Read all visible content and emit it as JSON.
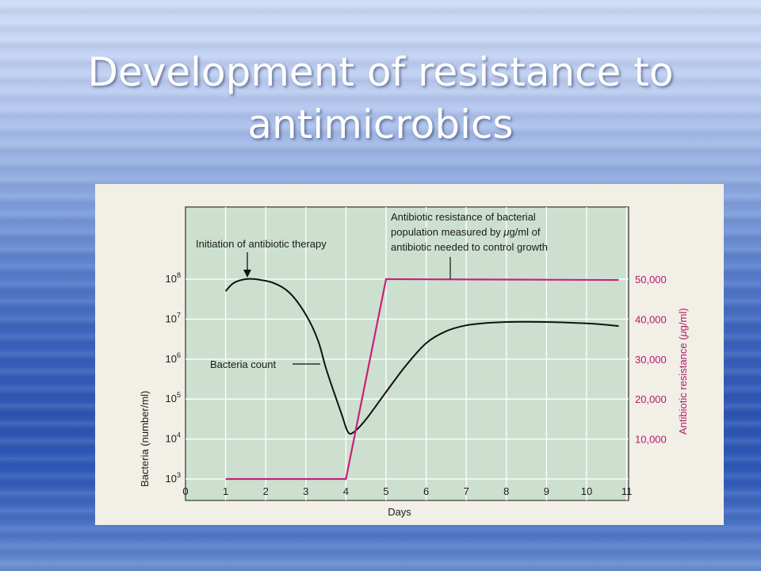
{
  "slide": {
    "title_line1": "Development of resistance to",
    "title_line2": "antimicrobics"
  },
  "colors": {
    "bacteria_curve": "#111111",
    "resistance_curve": "#c8207a",
    "plot_background": "#cde0cf",
    "grid": "#ffffff",
    "right_axis": "#b3186b"
  },
  "chart_data": {
    "type": "line",
    "xlabel": "Days",
    "xlim": [
      0,
      11
    ],
    "x_ticks": [
      "0",
      "1",
      "2",
      "3",
      "4",
      "5",
      "6",
      "7",
      "8",
      "9",
      "10",
      "11"
    ],
    "y_left": {
      "label": "Bacteria (number/ml)",
      "scale": "log",
      "lim": [
        1000,
        100000000
      ],
      "ticks": [
        {
          "value": 1000,
          "base": "10",
          "exp": "3"
        },
        {
          "value": 10000,
          "base": "10",
          "exp": "4"
        },
        {
          "value": 100000,
          "base": "10",
          "exp": "5"
        },
        {
          "value": 1000000,
          "base": "10",
          "exp": "6"
        },
        {
          "value": 10000000,
          "base": "10",
          "exp": "7"
        },
        {
          "value": 100000000,
          "base": "10",
          "exp": "8"
        }
      ]
    },
    "y_right": {
      "label_pre": "Antibiotic resistance (",
      "label_mu": "μ",
      "label_post": "g/ml)",
      "lim": [
        0,
        50000
      ],
      "ticks": [
        "10,000",
        "20,000",
        "30,000",
        "40,000",
        "50,000"
      ],
      "tick_values": [
        10000,
        20000,
        30000,
        40000,
        50000
      ]
    },
    "series": [
      {
        "name": "Bacteria count",
        "axis": "left",
        "x": [
          1,
          1.2,
          1.5,
          1.8,
          2.2,
          2.6,
          3.0,
          3.3,
          3.5,
          3.7,
          3.9,
          4.05,
          4.2,
          4.5,
          5.0,
          5.5,
          6.0,
          6.5,
          7.0,
          7.5,
          8.0,
          8.5,
          9.0,
          9.5,
          10.0,
          10.5,
          10.8
        ],
        "y": [
          50000000,
          80000000,
          100000000,
          98000000,
          80000000,
          45000000,
          13000000,
          3000000,
          600000,
          150000,
          40000,
          15000,
          15000,
          31000,
          150000,
          700000,
          2500000,
          5000000,
          7000000,
          8000000,
          8500000,
          8600000,
          8500000,
          8200000,
          7800000,
          7200000,
          6700000
        ]
      },
      {
        "name": "Antibiotic resistance",
        "axis": "right",
        "x": [
          1,
          4,
          5,
          10.8
        ],
        "y": [
          0,
          0,
          50000,
          49800
        ]
      }
    ],
    "annotations": {
      "therapy": "Initiation of antibiotic therapy",
      "count": "Bacteria count",
      "resistance_line1": "Antibiotic resistance of bacterial",
      "resistance_line2_pre": "population measured by ",
      "resistance_line2_mu": "μ",
      "resistance_line2_post": "g/ml of",
      "resistance_line3": "antibiotic needed to control growth"
    },
    "grid": true
  }
}
